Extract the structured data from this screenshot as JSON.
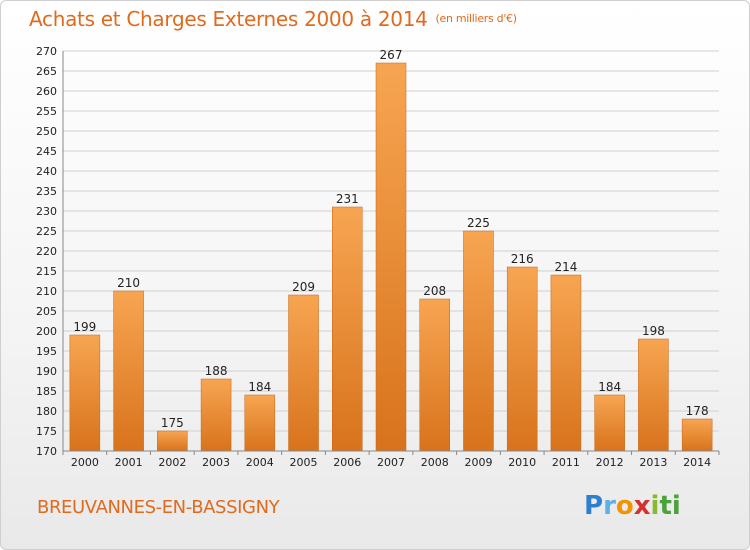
{
  "header": {
    "title": "Achats et Charges Externes 2000 à 2014",
    "unit": "(en milliers d'€)"
  },
  "footer": {
    "place": "BREUVANNES-EN-BASSIGNY",
    "logo_letters": [
      "P",
      "r",
      "o",
      "x",
      "i",
      "ti"
    ]
  },
  "colors": {
    "accent": "#e06a1e",
    "bar_top": "#f7a552",
    "bar_bottom": "#d8731c",
    "grid": "#d0d0d0"
  },
  "chart_data": {
    "type": "bar",
    "title": "Achats et Charges Externes 2000 à 2014",
    "subtitle": "(en milliers d'€)",
    "categories": [
      "2000",
      "2001",
      "2002",
      "2003",
      "2004",
      "2005",
      "2006",
      "2007",
      "2008",
      "2009",
      "2010",
      "2011",
      "2012",
      "2013",
      "2014"
    ],
    "values": [
      199,
      210,
      175,
      188,
      184,
      209,
      231,
      267,
      208,
      225,
      216,
      214,
      184,
      198,
      178
    ],
    "ylim": [
      170,
      270
    ],
    "ytick_step": 5,
    "grid": true,
    "legend": "none",
    "xlabel": "",
    "ylabel": ""
  }
}
